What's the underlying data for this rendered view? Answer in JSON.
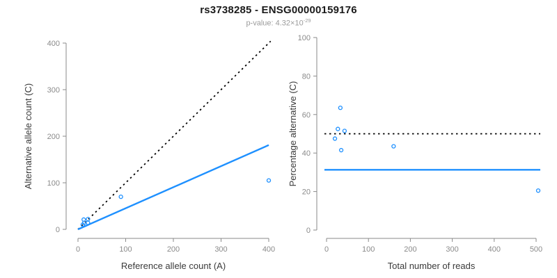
{
  "header": {
    "title": "rs3738285 - ENSG00000159176",
    "subtitle_prefix": "p-value: 4.32×10",
    "subtitle_exponent": "-29"
  },
  "colors": {
    "accent_blue": "#1E90FF",
    "line_black": "#000000",
    "axis_gray": "#8a8a8a",
    "tick_label_gray": "#8a8a8a",
    "axis_title_dark": "#3a3a3a"
  },
  "chart_data": [
    {
      "type": "scatter",
      "panel": "left",
      "xlabel": "Reference allele count (A)",
      "ylabel": "Alternative allele count (C)",
      "xlim": [
        0,
        400
      ],
      "ylim": [
        0,
        400
      ],
      "xticks": [
        0,
        100,
        200,
        300,
        400
      ],
      "yticks": [
        0,
        100,
        200,
        300,
        400
      ],
      "grid": false,
      "legend": null,
      "points": [
        [
          10,
          10
        ],
        [
          12,
          21
        ],
        [
          13,
          14
        ],
        [
          21,
          22
        ],
        [
          21,
          14
        ],
        [
          90,
          70
        ],
        [
          400,
          105
        ]
      ],
      "point_style": {
        "color": "#1E90FF",
        "fill": "none",
        "radius": 2.5
      },
      "lines": [
        {
          "name": "identity-line",
          "style": "dotted",
          "color": "#000000",
          "from": [
            0,
            0
          ],
          "to": [
            404,
            404
          ]
        },
        {
          "name": "fit-line",
          "style": "solid",
          "color": "#1E90FF",
          "from": [
            0,
            0
          ],
          "to": [
            400,
            181
          ]
        }
      ]
    },
    {
      "type": "scatter",
      "panel": "right",
      "xlabel": "Total number of reads",
      "ylabel": "Percentage alternative (C)",
      "xlim": [
        0,
        500
      ],
      "ylim": [
        0,
        100
      ],
      "xticks": [
        0,
        100,
        200,
        300,
        400,
        500
      ],
      "yticks": [
        0,
        20,
        40,
        60,
        80,
        100
      ],
      "grid": false,
      "legend": null,
      "points": [
        [
          20,
          47.5
        ],
        [
          27,
          52.5
        ],
        [
          33,
          63.5
        ],
        [
          35,
          41.5
        ],
        [
          43,
          51.5
        ],
        [
          160,
          43.5
        ],
        [
          505,
          20.5
        ]
      ],
      "point_style": {
        "color": "#1E90FF",
        "fill": "none",
        "radius": 2.5
      },
      "lines": [
        {
          "name": "fifty-percent-line",
          "style": "dotted",
          "color": "#000000",
          "from": [
            -5,
            50
          ],
          "to": [
            510,
            50
          ]
        },
        {
          "name": "overall-percentage-line",
          "style": "solid",
          "color": "#1E90FF",
          "from": [
            -5,
            31.3
          ],
          "to": [
            510,
            31.3
          ]
        }
      ]
    }
  ]
}
